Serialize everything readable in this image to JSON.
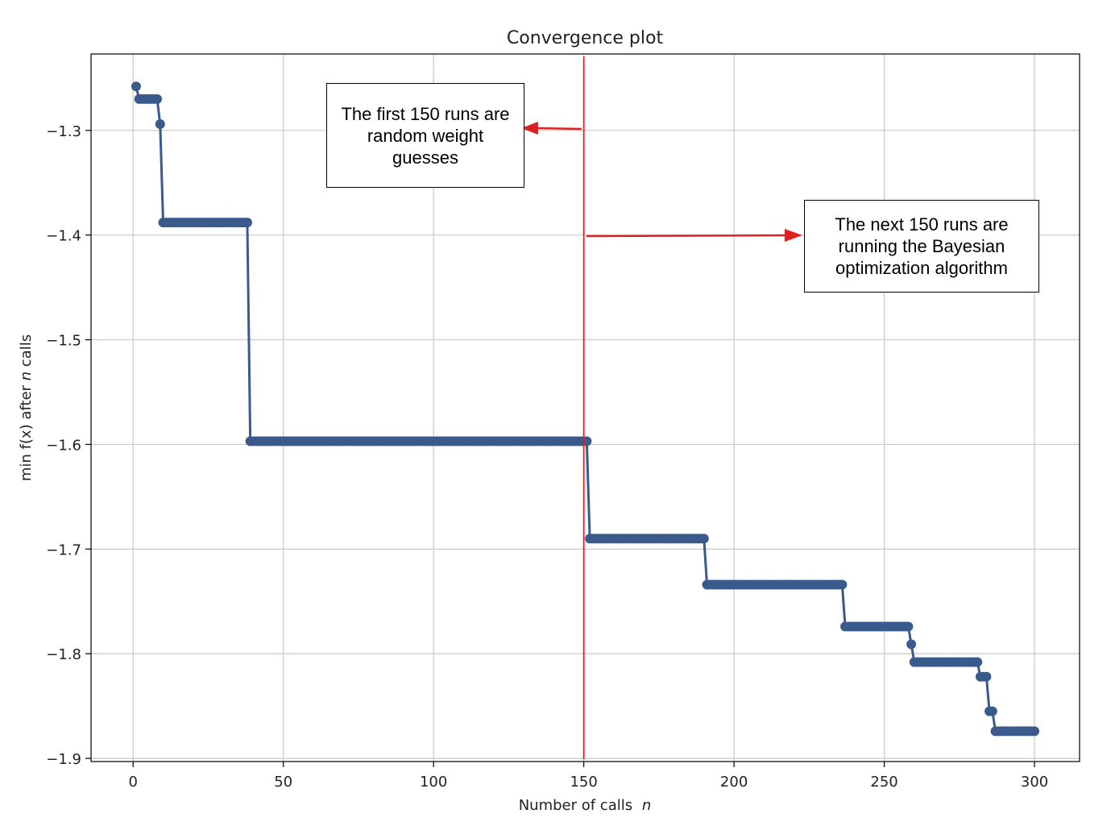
{
  "chart_data": {
    "type": "line",
    "title": "Convergence plot",
    "xlabel": "Number of calls",
    "xlabel_italic": "n",
    "ylabel_prefix": "min",
    "ylabel_fx": "f(x)",
    "ylabel_mid": " after ",
    "ylabel_italic": "n",
    "ylabel_suffix": " calls",
    "xlim": [
      -14,
      315
    ],
    "ylim": [
      -1.903,
      -1.227
    ],
    "xticks": [
      0,
      50,
      100,
      150,
      200,
      250,
      300
    ],
    "yticks": [
      -1.3,
      -1.4,
      -1.5,
      -1.6,
      -1.7,
      -1.8,
      -1.9
    ],
    "ytick_labels": [
      "−1.3",
      "−1.4",
      "−1.5",
      "−1.6",
      "−1.7",
      "−1.8",
      "−1.9"
    ],
    "grid": true,
    "series": [
      {
        "color": "#3a5a8c",
        "marker": "circle",
        "steps": [
          {
            "from": 1,
            "to": 1,
            "y": -1.258
          },
          {
            "from": 2,
            "to": 8,
            "y": -1.27
          },
          {
            "from": 9,
            "to": 9,
            "y": -1.294
          },
          {
            "from": 10,
            "to": 38,
            "y": -1.388
          },
          {
            "from": 39,
            "to": 151,
            "y": -1.597
          },
          {
            "from": 152,
            "to": 190,
            "y": -1.69
          },
          {
            "from": 191,
            "to": 236,
            "y": -1.734
          },
          {
            "from": 237,
            "to": 258,
            "y": -1.774
          },
          {
            "from": 259,
            "to": 259,
            "y": -1.791
          },
          {
            "from": 260,
            "to": 281,
            "y": -1.808
          },
          {
            "from": 282,
            "to": 284,
            "y": -1.822
          },
          {
            "from": 285,
            "to": 286,
            "y": -1.855
          },
          {
            "from": 287,
            "to": 300,
            "y": -1.874
          }
        ]
      }
    ],
    "divider": {
      "x": 150,
      "color": "#e02020"
    },
    "annotations": [
      {
        "text_lines": [
          "The first 150 runs are",
          "random weight",
          "guesses"
        ],
        "arrow": "left"
      },
      {
        "text_lines": [
          "The next 150 runs are",
          "running the Bayesian",
          "optimization algorithm"
        ],
        "arrow": "right"
      }
    ]
  }
}
